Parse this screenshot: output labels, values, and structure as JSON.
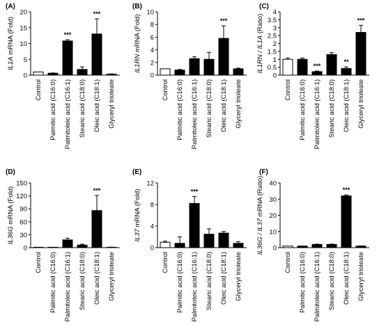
{
  "chart_data": [
    {
      "type": "bar",
      "panel_letter": "(A)",
      "ylabel_gene": "IL1A",
      "ylabel_suffix": " mRNA (Fold)",
      "ylim": [
        0,
        20
      ],
      "yticks": [
        "0",
        "5",
        "10",
        "15",
        "20"
      ],
      "categories": [
        "Control",
        "Palmitic acid (C16:0)",
        "Palmitoleic acid (C16:1)",
        "Stearic acid (C18:0)",
        "Oleic acid (C18:1)",
        "Glyceryl trioleate"
      ],
      "values": [
        1.0,
        0.6,
        10.8,
        1.8,
        13.0,
        0.3
      ],
      "errors": [
        0.0,
        0.1,
        0.4,
        0.8,
        4.8,
        0.1
      ],
      "significance": [
        "",
        "",
        "***",
        "",
        "***",
        ""
      ]
    },
    {
      "type": "bar",
      "panel_letter": "(B)",
      "ylabel_gene": "IL1RN",
      "ylabel_suffix": " mRNA (Fold)",
      "ylim": [
        0,
        10
      ],
      "yticks": [
        "0",
        "2",
        "4",
        "6",
        "8",
        "10"
      ],
      "categories": [
        "Control",
        "Palmitic acid (C16:0)",
        "Palmitoleic acid (C16:1)",
        "Stearic acid (C18:0)",
        "Oleic acid (C18:1)",
        "Glyceryl trioleate"
      ],
      "values": [
        1.0,
        0.8,
        2.6,
        2.5,
        5.8,
        1.0
      ],
      "errors": [
        0.0,
        0.1,
        0.3,
        1.1,
        2.0,
        0.1
      ],
      "significance": [
        "",
        "",
        "",
        "",
        "***",
        ""
      ]
    },
    {
      "type": "bar",
      "panel_letter": "(C)",
      "ylabel_gene": "IL1RN / IL1A",
      "ylabel_suffix": " (Ratio)",
      "ylim": [
        0,
        4
      ],
      "yticks": [
        "0",
        "0.5",
        "1",
        "1.5",
        "2",
        "2.5",
        "3",
        "3.5",
        "4"
      ],
      "categories": [
        "Control",
        "Palmitic acid (C16:0)",
        "Palmitoleic acid (C16:1)",
        "Stearic acid (C18:0)",
        "Oleic acid (C18:1)",
        "Glyceryl trioleate"
      ],
      "values": [
        1.0,
        1.0,
        0.22,
        1.3,
        0.42,
        2.7
      ],
      "errors": [
        0.08,
        0.08,
        0.04,
        0.12,
        0.1,
        0.45
      ],
      "significance": [
        "",
        "",
        "***",
        "",
        "**",
        "***"
      ]
    },
    {
      "type": "bar",
      "panel_letter": "(D)",
      "ylabel_gene": "IL36G",
      "ylabel_suffix": " mRNA (Fold)",
      "ylim": [
        0,
        150
      ],
      "yticks": [
        "0",
        "30",
        "60",
        "90",
        "120",
        "150"
      ],
      "categories": [
        "Control",
        "Palmitic acid (C16:0)",
        "Palmitoleic acid (C16:1)",
        "Stearic acid (C18:0)",
        "Oleic acid (C18:1)",
        "Glyceryl trioleate"
      ],
      "values": [
        1.0,
        1.0,
        18.0,
        6.0,
        86.0,
        1.0
      ],
      "errors": [
        0.0,
        0.0,
        4.0,
        2.0,
        35.0,
        0.2
      ],
      "significance": [
        "",
        "",
        "",
        "",
        "***",
        ""
      ]
    },
    {
      "type": "bar",
      "panel_letter": "(E)",
      "ylabel_gene": "IL37",
      "ylabel_suffix": " mRNA (Fold)",
      "ylim": [
        0,
        12
      ],
      "yticks": [
        "0",
        "4",
        "8",
        "12"
      ],
      "categories": [
        "Control",
        "Palmitic acid (C16:0)",
        "Palmitoleic acid (C16:1)",
        "Stearic acid (C18:0)",
        "Oleic acid (C18:1)",
        "Glyceryl trioleate"
      ],
      "values": [
        1.0,
        0.8,
        8.2,
        2.5,
        2.7,
        0.8
      ],
      "errors": [
        0.2,
        1.2,
        1.3,
        1.0,
        0.3,
        0.3
      ],
      "significance": [
        "",
        "",
        "***",
        "",
        "",
        ""
      ]
    },
    {
      "type": "bar",
      "panel_letter": "(F)",
      "ylabel_gene": "IL36G / IL37",
      "ylabel_suffix": " mRNA (Ratio)",
      "ylim": [
        0,
        40
      ],
      "yticks": [
        "0",
        "10",
        "20",
        "30",
        "40"
      ],
      "categories": [
        "Control",
        "Palmitic acid (C16:0)",
        "Palmitoleic acid (C16:1)",
        "Stearic acid (C18:0)",
        "Oleic acid (C18:1)",
        "Glyceryl trioleate"
      ],
      "values": [
        1.0,
        1.0,
        2.0,
        2.0,
        32.0,
        1.0
      ],
      "errors": [
        0.0,
        0.0,
        0.2,
        0.2,
        0.6,
        0.1
      ],
      "significance": [
        "",
        "",
        "",
        "",
        "***",
        ""
      ]
    }
  ],
  "colors": {
    "control_fill": "#ffffff",
    "treatment_fill": "#000000",
    "axis": "#000000"
  }
}
